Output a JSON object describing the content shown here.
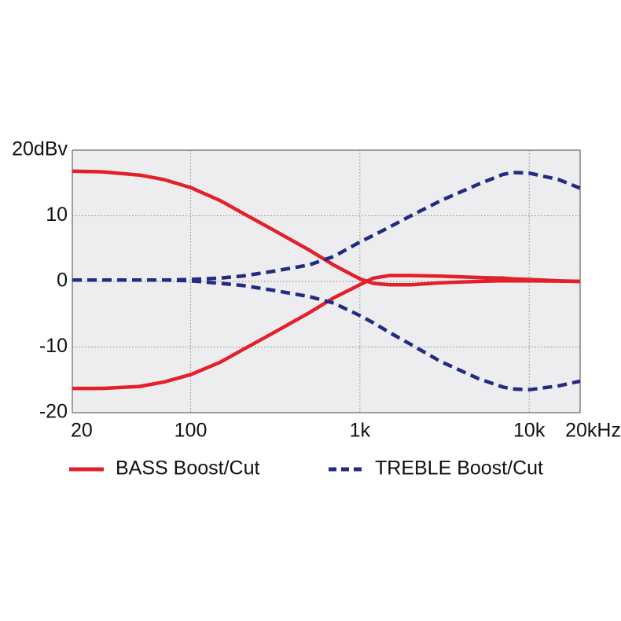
{
  "chart_data": {
    "type": "line",
    "log_x": true,
    "grid": true,
    "xlim": [
      20,
      20000
    ],
    "ylim": [
      -20,
      20
    ],
    "xticks": [
      20,
      100,
      {
        "value": 1000,
        "label": "1k"
      },
      {
        "value": 10000,
        "label": "10k"
      },
      {
        "value": 20000,
        "label": "20kHz"
      }
    ],
    "yticks": [
      {
        "value": 20,
        "label": "20dBv"
      },
      10,
      0,
      -10,
      -20
    ],
    "x": [
      20,
      30,
      50,
      70,
      100,
      150,
      200,
      300,
      500,
      700,
      1000,
      1200,
      1500,
      2000,
      3000,
      5000,
      7000,
      8000,
      10000,
      15000,
      20000
    ],
    "series": [
      {
        "name": "BASS Boost/Cut",
        "color": "#e3202a",
        "dashed": false,
        "values": [
          16.8,
          16.7,
          16.2,
          15.5,
          14.3,
          12.3,
          10.5,
          8,
          4.8,
          2.5,
          0.4,
          -0.3,
          -0.5,
          -0.5,
          -0.2,
          0,
          0.1,
          0.1,
          0.1,
          0.05,
          0
        ],
        "values_cut": [
          -16.3,
          -16.3,
          -16,
          -15.3,
          -14.2,
          -12.3,
          -10.5,
          -8,
          -4.8,
          -2.5,
          -0.5,
          0.5,
          0.9,
          0.9,
          0.8,
          0.6,
          0.5,
          0.4,
          0.3,
          0.1,
          0
        ]
      },
      {
        "name": "TREBLE Boost/Cut",
        "color": "#232a82",
        "dashed": true,
        "values": [
          0.2,
          0.2,
          0.2,
          0.2,
          0.3,
          0.5,
          0.8,
          1.5,
          2.5,
          3.8,
          6,
          7,
          8.3,
          10,
          12.3,
          14.8,
          16.3,
          16.6,
          16.5,
          15.5,
          14.2
        ],
        "values_cut": [
          0.2,
          0.2,
          0.2,
          0.2,
          0.1,
          -0.3,
          -0.6,
          -1.3,
          -2.3,
          -3.3,
          -5.2,
          -6.3,
          -7.8,
          -9.6,
          -12.2,
          -14.8,
          -16.1,
          -16.4,
          -16.5,
          -15.9,
          -15.2
        ]
      }
    ]
  }
}
